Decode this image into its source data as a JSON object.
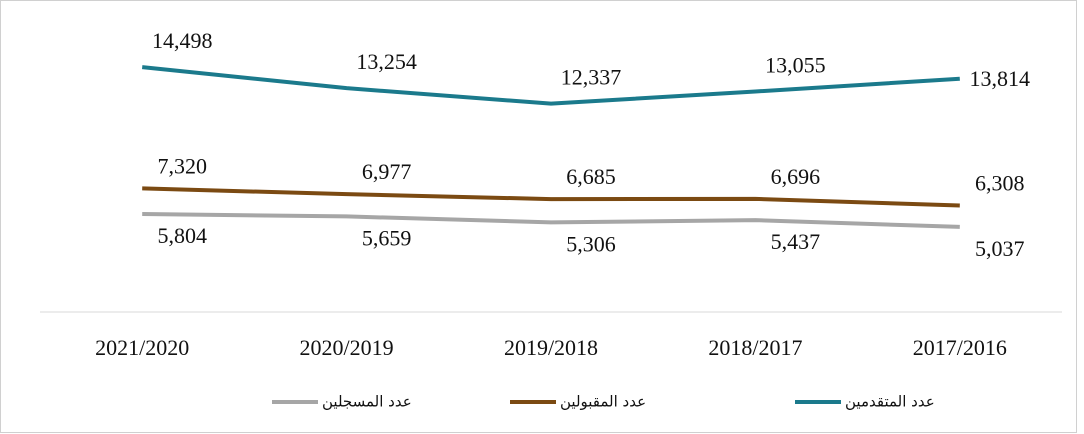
{
  "chart_data": {
    "type": "line",
    "categories": [
      "2021/2020",
      "2020/2019",
      "2019/2018",
      "2018/2017",
      "2017/2016"
    ],
    "series": [
      {
        "name": "عدد المتقدمين",
        "color": "#1b7a8c",
        "values": [
          14498,
          13254,
          12337,
          13055,
          13814
        ],
        "value_labels": [
          "14,498",
          "13,254",
          "12,337",
          "13,055",
          "13,814"
        ]
      },
      {
        "name": "عدد المقبولين",
        "color": "#7b4a12",
        "values": [
          7320,
          6977,
          6685,
          6696,
          6308
        ],
        "value_labels": [
          "7,320",
          "6,977",
          "6,685",
          "6,696",
          "6,308"
        ]
      },
      {
        "name": "عدد المسجلين",
        "color": "#a6a6a6",
        "values": [
          5804,
          5659,
          5306,
          5437,
          5037
        ],
        "value_labels": [
          "5,804",
          "5,659",
          "5,306",
          "5,437",
          "5,037"
        ]
      }
    ],
    "ylim": [
      0,
      18000
    ],
    "legend": "bottom"
  }
}
